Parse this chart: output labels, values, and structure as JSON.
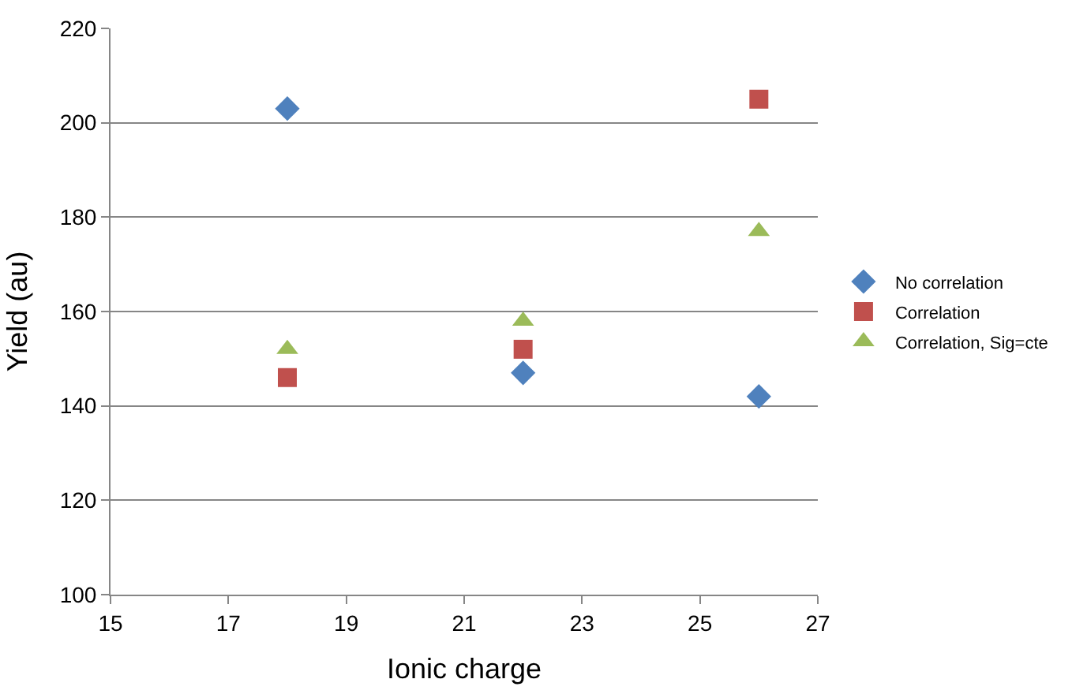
{
  "chart_data": {
    "type": "scatter",
    "xlabel": "Ionic charge",
    "ylabel": "Yield (au)",
    "x": [
      18,
      22,
      26
    ],
    "series": [
      {
        "name": "No correlation",
        "color": "#4f81bd",
        "marker": "diamond",
        "values": [
          203,
          147,
          142
        ]
      },
      {
        "name": "Correlation",
        "color": "#c0504d",
        "marker": "square",
        "values": [
          146,
          152,
          205
        ]
      },
      {
        "name": "Correlation, Sig=cte",
        "color": "#9bbb59",
        "marker": "triangle",
        "values": [
          152,
          158,
          177
        ]
      }
    ],
    "xlim": [
      15,
      27
    ],
    "xticks": [
      15,
      17,
      19,
      21,
      23,
      25,
      27
    ],
    "ylim": [
      100,
      220
    ],
    "yticks": [
      100,
      120,
      140,
      160,
      180,
      200,
      220
    ],
    "grid": "y",
    "legend": "right"
  }
}
